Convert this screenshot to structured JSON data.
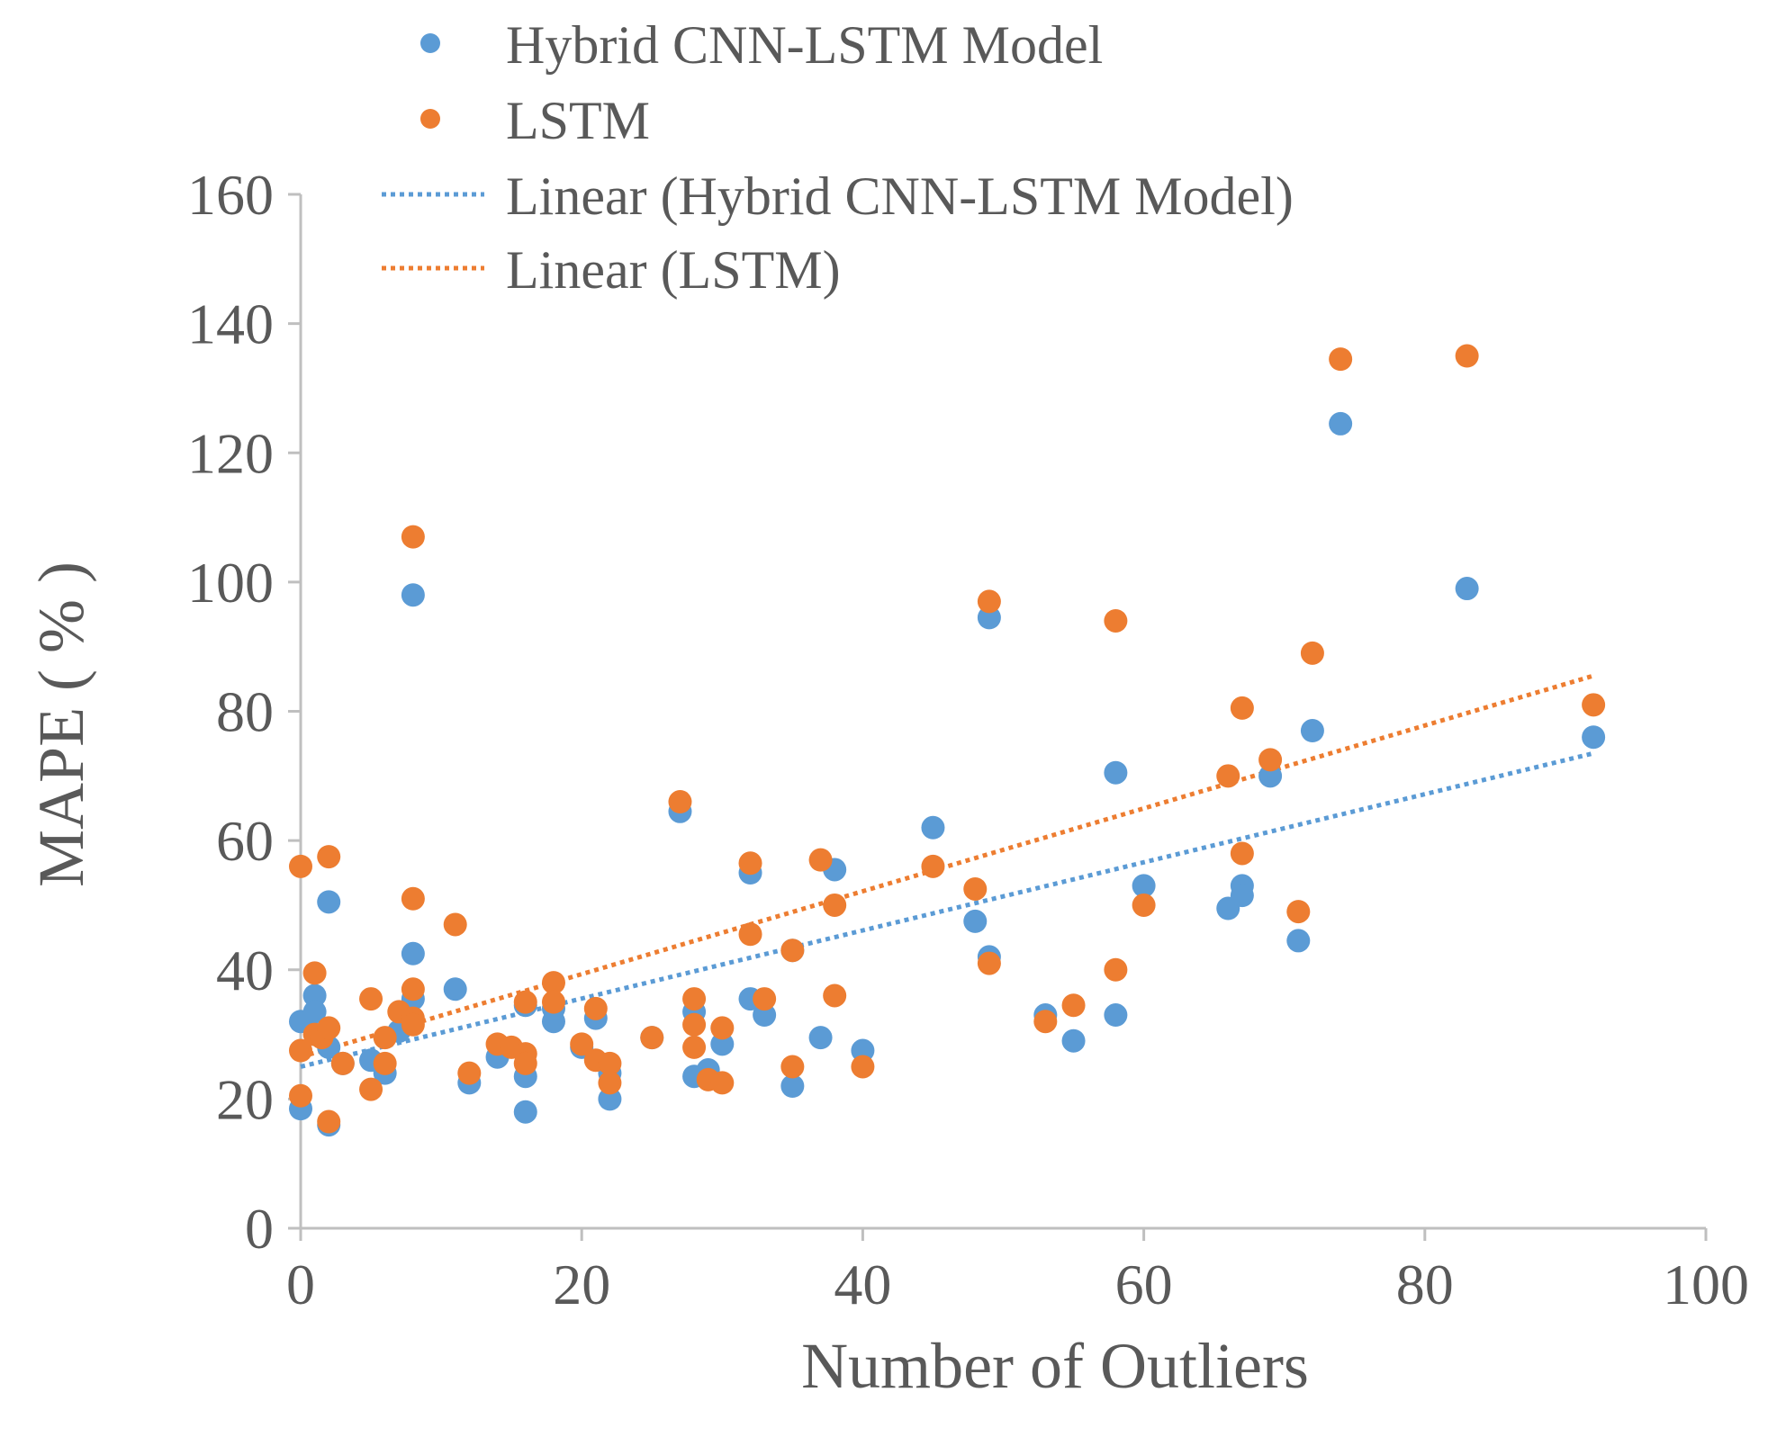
{
  "chart_data": {
    "type": "scatter",
    "title": "",
    "xlabel": "Number of Outliers",
    "ylabel": "MAPE ( % )",
    "xlim": [
      0,
      100
    ],
    "ylim": [
      0,
      160
    ],
    "xticks": [
      "0",
      "20",
      "40",
      "60",
      "80",
      "100"
    ],
    "yticks": [
      "0",
      "20",
      "40",
      "60",
      "80",
      "100",
      "120",
      "140",
      "160"
    ],
    "grid": false,
    "legend_position": "top",
    "legend": [
      "Hybrid CNN-LSTM Model",
      "LSTM",
      "Linear (Hybrid CNN-LSTM Model)",
      "Linear (LSTM)"
    ],
    "series": [
      {
        "name": "Hybrid CNN-LSTM Model",
        "color": "#5b9bd5",
        "points": [
          [
            0,
            18.5
          ],
          [
            0,
            32
          ],
          [
            1,
            36
          ],
          [
            1,
            33.5
          ],
          [
            1.5,
            30
          ],
          [
            2,
            50.5
          ],
          [
            2,
            28
          ],
          [
            2,
            16
          ],
          [
            3,
            25.5
          ],
          [
            5,
            26
          ],
          [
            6,
            24
          ],
          [
            7,
            30.5
          ],
          [
            8,
            98
          ],
          [
            8,
            42.5
          ],
          [
            8,
            35.5
          ],
          [
            11,
            37
          ],
          [
            12,
            22.5
          ],
          [
            14,
            26.5
          ],
          [
            16,
            23.5
          ],
          [
            16,
            18
          ],
          [
            16,
            34.5
          ],
          [
            18,
            32
          ],
          [
            18,
            34
          ],
          [
            20,
            28
          ],
          [
            21,
            32.5
          ],
          [
            22,
            20
          ],
          [
            22,
            24
          ],
          [
            25,
            29.5
          ],
          [
            27,
            64.5
          ],
          [
            28,
            23.5
          ],
          [
            28,
            33.5
          ],
          [
            29,
            24.5
          ],
          [
            30,
            28.5
          ],
          [
            32,
            55
          ],
          [
            32,
            35.5
          ],
          [
            33,
            33
          ],
          [
            35,
            43
          ],
          [
            35,
            22
          ],
          [
            37,
            29.5
          ],
          [
            38,
            55.5
          ],
          [
            40,
            27.5
          ],
          [
            45,
            62
          ],
          [
            48,
            47.5
          ],
          [
            49,
            94.5
          ],
          [
            49,
            42
          ],
          [
            53,
            33
          ],
          [
            55,
            29
          ],
          [
            58,
            70.5
          ],
          [
            58,
            33
          ],
          [
            60,
            53
          ],
          [
            66,
            49.5
          ],
          [
            67,
            53
          ],
          [
            67,
            51.5
          ],
          [
            69,
            70
          ],
          [
            71,
            44.5
          ],
          [
            72,
            77
          ],
          [
            74,
            124.5
          ],
          [
            83,
            99
          ],
          [
            92,
            76
          ]
        ]
      },
      {
        "name": "LSTM",
        "color": "#ed7d31",
        "points": [
          [
            0,
            56
          ],
          [
            0,
            27.5
          ],
          [
            0,
            20.5
          ],
          [
            1,
            39.5
          ],
          [
            1,
            30
          ],
          [
            1.5,
            29.5
          ],
          [
            2,
            57.5
          ],
          [
            2,
            31
          ],
          [
            2,
            16.5
          ],
          [
            3,
            25.5
          ],
          [
            5,
            35.5
          ],
          [
            5,
            21.5
          ],
          [
            6,
            29.5
          ],
          [
            6,
            25.5
          ],
          [
            7,
            33.5
          ],
          [
            8,
            107
          ],
          [
            8,
            51
          ],
          [
            8,
            37
          ],
          [
            8,
            32.5
          ],
          [
            8,
            31.5
          ],
          [
            11,
            47
          ],
          [
            12,
            24
          ],
          [
            14,
            28.5
          ],
          [
            15,
            28
          ],
          [
            16,
            27
          ],
          [
            16,
            35
          ],
          [
            16,
            25.5
          ],
          [
            18,
            38
          ],
          [
            18,
            35
          ],
          [
            20,
            28.5
          ],
          [
            21,
            34
          ],
          [
            21,
            26
          ],
          [
            22,
            25.5
          ],
          [
            22,
            22.5
          ],
          [
            25,
            29.5
          ],
          [
            27,
            66
          ],
          [
            28,
            35.5
          ],
          [
            28,
            31.5
          ],
          [
            28,
            28
          ],
          [
            29,
            23
          ],
          [
            30,
            22.5
          ],
          [
            30,
            31
          ],
          [
            32,
            56.5
          ],
          [
            32,
            45.5
          ],
          [
            33,
            35.5
          ],
          [
            35,
            43
          ],
          [
            35,
            25
          ],
          [
            37,
            57
          ],
          [
            38,
            50
          ],
          [
            38,
            36
          ],
          [
            40,
            25
          ],
          [
            45,
            56
          ],
          [
            48,
            52.5
          ],
          [
            49,
            97
          ],
          [
            49,
            41
          ],
          [
            53,
            32
          ],
          [
            55,
            34.5
          ],
          [
            58,
            94
          ],
          [
            58,
            40
          ],
          [
            60,
            50
          ],
          [
            66,
            70
          ],
          [
            67,
            80.5
          ],
          [
            67,
            58
          ],
          [
            69,
            72.5
          ],
          [
            71,
            49
          ],
          [
            72,
            89
          ],
          [
            74,
            134.5
          ],
          [
            83,
            135
          ],
          [
            92,
            81
          ]
        ]
      }
    ],
    "trendlines": [
      {
        "name": "Linear (Hybrid CNN-LSTM Model)",
        "color": "#5b9bd5",
        "x": [
          0,
          92
        ],
        "y": [
          25,
          73.5
        ]
      },
      {
        "name": "Linear (LSTM)",
        "color": "#ed7d31",
        "x": [
          0,
          92
        ],
        "y": [
          26.5,
          85.5
        ]
      }
    ]
  }
}
